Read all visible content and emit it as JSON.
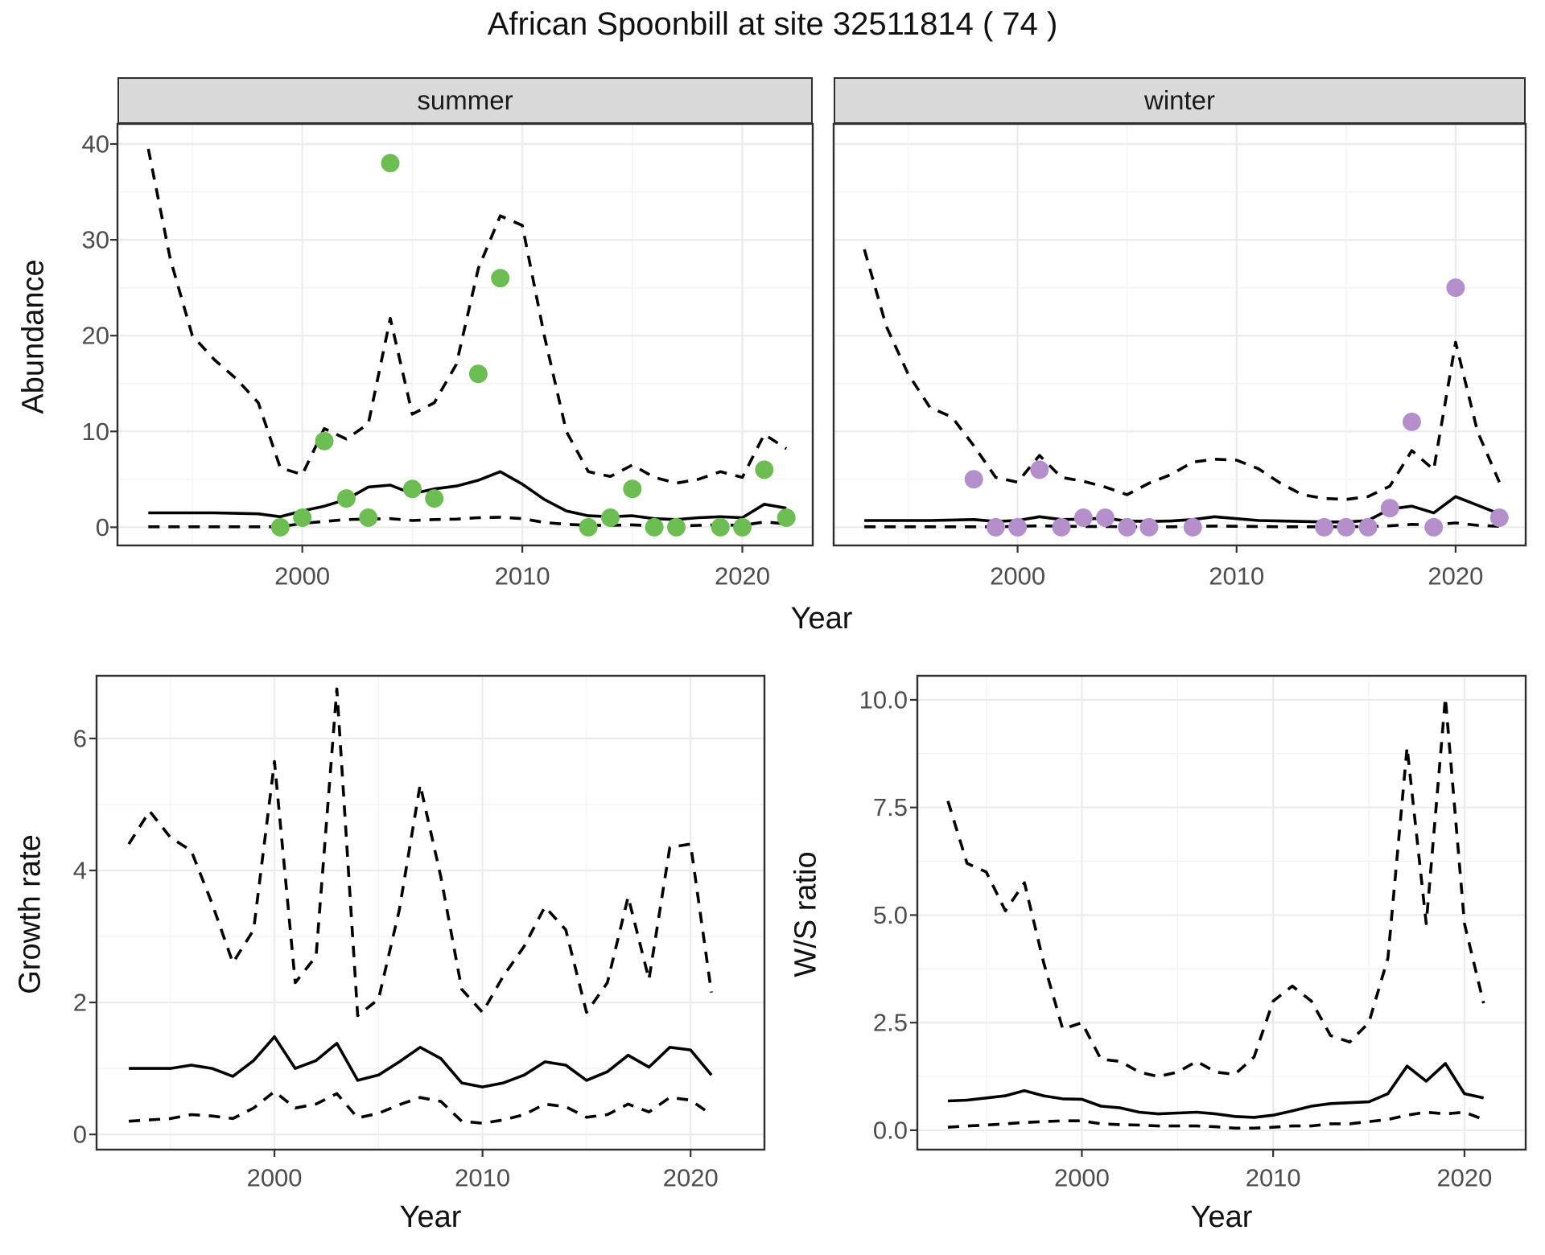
{
  "title": "African Spoonbill at site 32511814 ( 74 )",
  "labels": {
    "year": "Year",
    "abundance": "Abundance",
    "growth": "Growth rate",
    "ws": "W/S ratio"
  },
  "colors": {
    "summer_point": "#6cbe53",
    "winter_point": "#b48fcb",
    "line": "#000000",
    "strip_fill": "#dadada",
    "panel_border": "#2e2e2e",
    "grid_major": "#ebebeb",
    "grid_minor": "#f3f3f3",
    "tick_label": "#4d4d4d"
  },
  "chart_data": [
    {
      "id": "abundance-summer",
      "type": "line",
      "facet_label": "summer",
      "xlabel": "Year",
      "ylabel": "Abundance",
      "xlim": [
        1991.6,
        2023.2
      ],
      "ylim": [
        -1.9,
        42.1
      ],
      "x_ticks": [
        2000,
        2010,
        2020
      ],
      "x_tick_labels": [
        "2000",
        "2010",
        "2020"
      ],
      "x_minor": [
        1995,
        2005,
        2015
      ],
      "y_ticks": [
        0,
        10,
        20,
        30,
        40
      ],
      "y_tick_labels": [
        "0",
        "10",
        "20",
        "30",
        "40"
      ],
      "y_minor": [
        5,
        15,
        25,
        35
      ],
      "years": [
        1993,
        1994,
        1995,
        1996,
        1997,
        1998,
        1999,
        2000,
        2001,
        2002,
        2003,
        2004,
        2005,
        2006,
        2007,
        2008,
        2009,
        2010,
        2011,
        2012,
        2013,
        2014,
        2015,
        2016,
        2017,
        2018,
        2019,
        2020,
        2021,
        2022
      ],
      "series": [
        {
          "name": "mean",
          "line": "solid",
          "values": [
            1.5,
            1.5,
            1.5,
            1.5,
            1.45,
            1.4,
            1.1,
            1.7,
            2.2,
            2.9,
            4.2,
            4.4,
            3.5,
            4.0,
            4.3,
            4.9,
            5.8,
            4.5,
            2.9,
            1.7,
            1.2,
            1.1,
            1.2,
            0.9,
            0.8,
            1.0,
            1.1,
            1.0,
            2.4,
            2.0
          ]
        },
        {
          "name": "upper_95ci",
          "line": "dashed",
          "values": [
            39.5,
            28,
            20,
            17.5,
            15.5,
            13,
            6.2,
            5.5,
            10.3,
            9.2,
            10.8,
            21.8,
            11.8,
            13.0,
            17.0,
            27.0,
            32.5,
            31.5,
            20.0,
            10.0,
            5.8,
            5.3,
            6.5,
            5.2,
            4.6,
            5.0,
            5.8,
            5.2,
            9.7,
            8.2
          ]
        },
        {
          "name": "lower_95ci",
          "line": "dashed",
          "values": [
            0.05,
            0.05,
            0.05,
            0.05,
            0.05,
            0.05,
            0.05,
            0.4,
            0.6,
            0.8,
            0.85,
            0.9,
            0.7,
            0.8,
            0.85,
            1.0,
            1.05,
            0.9,
            0.5,
            0.3,
            0.2,
            0.2,
            0.25,
            0.15,
            0.12,
            0.2,
            0.25,
            0.2,
            0.55,
            0.35
          ]
        }
      ],
      "points": {
        "name": "observed_count",
        "color": "#6cbe53",
        "data": [
          [
            1999,
            0
          ],
          [
            2000,
            1
          ],
          [
            2001,
            9
          ],
          [
            2002,
            3
          ],
          [
            2003,
            1
          ],
          [
            2004,
            38
          ],
          [
            2005,
            4
          ],
          [
            2006,
            3
          ],
          [
            2008,
            16
          ],
          [
            2009,
            26
          ],
          [
            2013,
            0
          ],
          [
            2014,
            1
          ],
          [
            2015,
            4
          ],
          [
            2016,
            0
          ],
          [
            2017,
            0
          ],
          [
            2019,
            0
          ],
          [
            2020,
            0
          ],
          [
            2021,
            6
          ],
          [
            2022,
            1
          ]
        ]
      }
    },
    {
      "id": "abundance-winter",
      "type": "line",
      "facet_label": "winter",
      "xlabel": "Year",
      "ylabel": "Abundance",
      "xlim": [
        1991.6,
        2023.2
      ],
      "ylim": [
        -1.9,
        42.1
      ],
      "x_ticks": [
        2000,
        2010,
        2020
      ],
      "x_tick_labels": [
        "2000",
        "2010",
        "2020"
      ],
      "x_minor": [
        1995,
        2005,
        2015
      ],
      "y_ticks": [
        0,
        10,
        20,
        30,
        40
      ],
      "y_tick_labels": [
        "0",
        "10",
        "20",
        "30",
        "40"
      ],
      "y_minor": [
        5,
        15,
        25,
        35
      ],
      "years": [
        1993,
        1994,
        1995,
        1996,
        1997,
        1998,
        1999,
        2000,
        2001,
        2002,
        2003,
        2004,
        2005,
        2006,
        2007,
        2008,
        2009,
        2010,
        2011,
        2012,
        2013,
        2014,
        2015,
        2016,
        2017,
        2018,
        2019,
        2020,
        2021,
        2022
      ],
      "series": [
        {
          "name": "mean",
          "line": "solid",
          "values": [
            0.7,
            0.7,
            0.7,
            0.7,
            0.75,
            0.8,
            0.6,
            0.7,
            1.1,
            0.8,
            0.85,
            0.95,
            0.65,
            0.6,
            0.65,
            0.8,
            1.1,
            0.9,
            0.7,
            0.65,
            0.6,
            0.55,
            0.55,
            0.7,
            1.9,
            2.2,
            1.5,
            3.2,
            2.3,
            1.4
          ]
        },
        {
          "name": "upper_95ci",
          "line": "dashed",
          "values": [
            29,
            21,
            16,
            12.5,
            11.5,
            8.5,
            5.2,
            4.7,
            7.5,
            5.2,
            4.8,
            4.2,
            3.4,
            4.6,
            5.5,
            6.8,
            7.1,
            7.0,
            6.1,
            4.6,
            3.4,
            3.0,
            2.9,
            3.2,
            4.3,
            8.0,
            6.0,
            19.3,
            10.0,
            4.7
          ]
        },
        {
          "name": "lower_95ci",
          "line": "dashed",
          "values": [
            0.05,
            0.05,
            0.05,
            0.05,
            0.05,
            0.05,
            0.05,
            0.1,
            0.15,
            0.1,
            0.08,
            0.08,
            0.05,
            0.05,
            0.05,
            0.08,
            0.12,
            0.1,
            0.08,
            0.05,
            0.05,
            0.05,
            0.05,
            0.08,
            0.15,
            0.3,
            0.25,
            0.45,
            0.2,
            0.1
          ]
        }
      ],
      "points": {
        "name": "observed_count",
        "color": "#b48fcb",
        "data": [
          [
            1998,
            5
          ],
          [
            1999,
            0
          ],
          [
            2000,
            0
          ],
          [
            2001,
            6
          ],
          [
            2002,
            0
          ],
          [
            2003,
            1
          ],
          [
            2004,
            1
          ],
          [
            2005,
            0
          ],
          [
            2006,
            0
          ],
          [
            2008,
            0
          ],
          [
            2014,
            0
          ],
          [
            2015,
            0
          ],
          [
            2016,
            0
          ],
          [
            2017,
            2
          ],
          [
            2018,
            11
          ],
          [
            2019,
            0
          ],
          [
            2020,
            25
          ],
          [
            2022,
            1
          ]
        ]
      }
    },
    {
      "id": "growth-rate",
      "type": "line",
      "facet_label": "",
      "xlabel": "Year",
      "ylabel": "Growth rate",
      "xlim": [
        1991.45,
        2023.55
      ],
      "ylim": [
        -0.23,
        6.95
      ],
      "x_ticks": [
        2000,
        2010,
        2020
      ],
      "x_tick_labels": [
        "2000",
        "2010",
        "2020"
      ],
      "x_minor": [
        1995,
        2005,
        2015
      ],
      "y_ticks": [
        0,
        2,
        4,
        6
      ],
      "y_tick_labels": [
        "0",
        "2",
        "4",
        "6"
      ],
      "y_minor": [
        1,
        3,
        5
      ],
      "years": [
        1993,
        1994,
        1995,
        1996,
        1997,
        1998,
        1999,
        2000,
        2001,
        2002,
        2003,
        2004,
        2005,
        2006,
        2007,
        2008,
        2009,
        2010,
        2011,
        2012,
        2013,
        2014,
        2015,
        2016,
        2017,
        2018,
        2019,
        2020,
        2021
      ],
      "series": [
        {
          "name": "mean",
          "line": "solid",
          "values": [
            1.0,
            1.0,
            1.0,
            1.05,
            1.0,
            0.88,
            1.12,
            1.48,
            1.0,
            1.12,
            1.38,
            0.82,
            0.9,
            1.1,
            1.32,
            1.15,
            0.78,
            0.72,
            0.78,
            0.9,
            1.1,
            1.05,
            0.82,
            0.95,
            1.2,
            1.02,
            1.32,
            1.28,
            0.9
          ]
        },
        {
          "name": "upper_95ci",
          "line": "dashed",
          "values": [
            4.4,
            4.9,
            4.5,
            4.3,
            3.5,
            2.6,
            3.1,
            5.65,
            2.3,
            2.7,
            6.75,
            1.8,
            2.05,
            3.4,
            5.3,
            3.9,
            2.2,
            1.85,
            2.4,
            2.85,
            3.45,
            3.1,
            1.85,
            2.3,
            3.6,
            2.35,
            4.35,
            4.4,
            2.15
          ]
        },
        {
          "name": "lower_95ci",
          "line": "dashed",
          "values": [
            0.2,
            0.22,
            0.24,
            0.3,
            0.28,
            0.24,
            0.4,
            0.65,
            0.4,
            0.46,
            0.62,
            0.25,
            0.32,
            0.45,
            0.56,
            0.5,
            0.2,
            0.17,
            0.22,
            0.3,
            0.46,
            0.42,
            0.26,
            0.3,
            0.46,
            0.34,
            0.56,
            0.52,
            0.3
          ]
        }
      ]
    },
    {
      "id": "ws-ratio",
      "type": "line",
      "facet_label": "",
      "xlabel": "Year",
      "ylabel": "W/S ratio",
      "xlim": [
        1991.4,
        2023.2
      ],
      "ylim": [
        -0.45,
        10.56
      ],
      "x_ticks": [
        2000,
        2010,
        2020
      ],
      "x_tick_labels": [
        "2000",
        "2010",
        "2020"
      ],
      "x_minor": [
        1995,
        2005,
        2015
      ],
      "y_ticks": [
        0,
        2.5,
        5,
        7.5,
        10
      ],
      "y_tick_labels": [
        "0.0",
        "2.5",
        "5.0",
        "7.5",
        "10.0"
      ],
      "y_minor": [
        1.25,
        3.75,
        6.25,
        8.75
      ],
      "years": [
        1993,
        1994,
        1995,
        1996,
        1997,
        1998,
        1999,
        2000,
        2001,
        2002,
        2003,
        2004,
        2005,
        2006,
        2007,
        2008,
        2009,
        2010,
        2011,
        2012,
        2013,
        2014,
        2015,
        2016,
        2017,
        2018,
        2019,
        2020,
        2021
      ],
      "series": [
        {
          "name": "mean",
          "line": "solid",
          "values": [
            0.68,
            0.7,
            0.75,
            0.8,
            0.92,
            0.8,
            0.73,
            0.72,
            0.56,
            0.52,
            0.42,
            0.38,
            0.4,
            0.42,
            0.38,
            0.32,
            0.3,
            0.35,
            0.45,
            0.56,
            0.62,
            0.64,
            0.66,
            0.85,
            1.49,
            1.14,
            1.55,
            0.85,
            0.75
          ]
        },
        {
          "name": "upper_95ci",
          "line": "dashed",
          "values": [
            7.65,
            6.2,
            6.0,
            5.1,
            5.75,
            3.9,
            2.35,
            2.5,
            1.65,
            1.6,
            1.35,
            1.25,
            1.35,
            1.6,
            1.35,
            1.3,
            1.7,
            3.0,
            3.35,
            3.0,
            2.2,
            2.05,
            2.5,
            4.0,
            8.9,
            4.8,
            10.05,
            4.8,
            2.95
          ]
        },
        {
          "name": "lower_95ci",
          "line": "dashed",
          "values": [
            0.07,
            0.1,
            0.12,
            0.15,
            0.18,
            0.2,
            0.22,
            0.22,
            0.15,
            0.13,
            0.12,
            0.1,
            0.1,
            0.1,
            0.08,
            0.05,
            0.05,
            0.07,
            0.1,
            0.1,
            0.15,
            0.15,
            0.2,
            0.25,
            0.35,
            0.42,
            0.38,
            0.42,
            0.25
          ]
        }
      ]
    }
  ]
}
